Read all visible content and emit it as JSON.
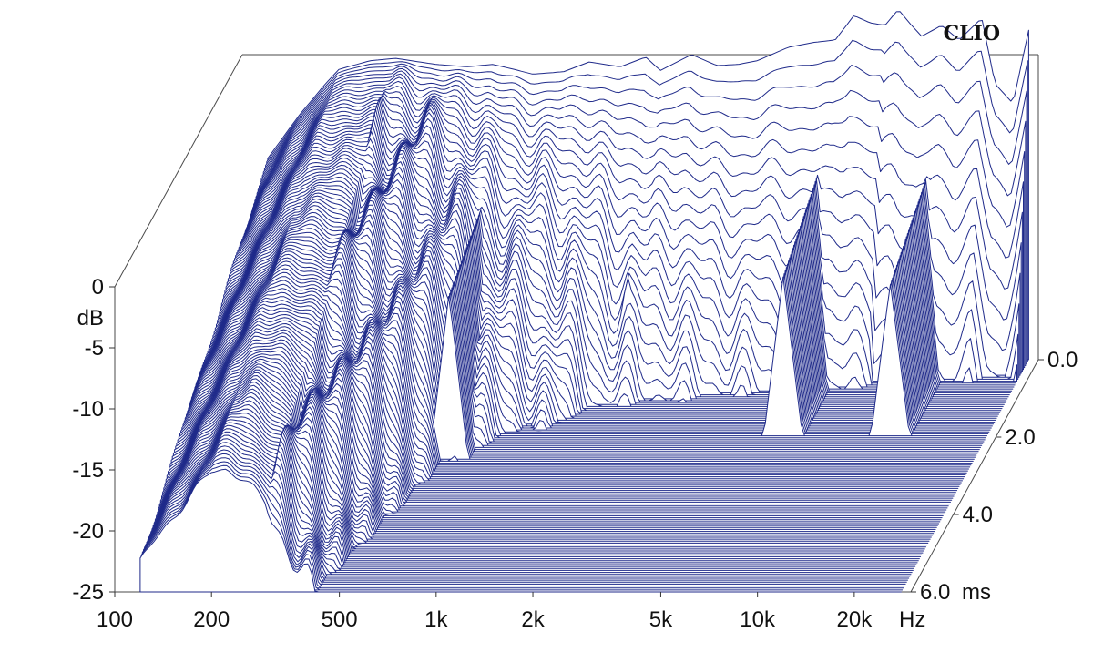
{
  "chart_data": {
    "type": "waterfall-3d",
    "brand": "CLIO",
    "x_axis": {
      "scale": "log",
      "unit": "Hz",
      "range": [
        100,
        30000
      ],
      "ticks": [
        {
          "value": 100,
          "label": "100"
        },
        {
          "value": 200,
          "label": "200"
        },
        {
          "value": 500,
          "label": "500"
        },
        {
          "value": 1000,
          "label": "1k"
        },
        {
          "value": 2000,
          "label": "2k"
        },
        {
          "value": 5000,
          "label": "5k"
        },
        {
          "value": 10000,
          "label": "10k"
        },
        {
          "value": 20000,
          "label": "20k"
        }
      ]
    },
    "y_axis": {
      "unit": "dB",
      "range": [
        -25,
        0
      ],
      "ticks": [
        {
          "value": 0,
          "label": "0"
        },
        {
          "value": -5,
          "label": "-5"
        },
        {
          "value": -10,
          "label": "-10"
        },
        {
          "value": -15,
          "label": "-15"
        },
        {
          "value": -20,
          "label": "-20"
        },
        {
          "value": -25,
          "label": "-25"
        }
      ]
    },
    "z_axis": {
      "unit": "ms",
      "range": [
        0,
        6
      ],
      "ticks": [
        {
          "value": 0,
          "label": "0.0"
        },
        {
          "value": 2,
          "label": "2.0"
        },
        {
          "value": 4,
          "label": "4.0"
        },
        {
          "value": 6,
          "label": "6.0"
        }
      ]
    },
    "slice_count": 120,
    "series_color": "#1f2a8a",
    "initial_response": {
      "freq_hz": [
        120,
        150,
        180,
        200,
        250,
        300,
        400,
        500,
        600,
        700,
        800,
        1000,
        1200,
        1500,
        1800,
        2000,
        2500,
        3000,
        3500,
        4000,
        5000,
        6000,
        7000,
        8000,
        9000,
        10000,
        11000,
        12000,
        13000,
        15000,
        17000,
        20000,
        22000,
        25000,
        28000
      ],
      "db": [
        -8.5,
        -5,
        -2.5,
        -1.2,
        -0.5,
        -0.3,
        -0.8,
        -1.0,
        -0.8,
        -1.2,
        -1.6,
        -1.4,
        -0.6,
        -1.0,
        -0.2,
        -1.3,
        0.0,
        -0.9,
        -0.8,
        -0.5,
        0.6,
        1.0,
        1.2,
        3.2,
        2.6,
        2.4,
        3.7,
        2.5,
        1.5,
        2.4,
        1.2,
        3.0,
        -2.4,
        -4.0,
        2.0
      ]
    },
    "decay_features": [
      {
        "freq_hz": 650,
        "lasts_ms": 2.6,
        "level_db": -7.5
      },
      {
        "freq_hz": 1800,
        "lasts_ms": 0.9,
        "level_db": -11.5
      },
      {
        "freq_hz": 6500,
        "lasts_ms": 2.0,
        "level_db": -8
      },
      {
        "freq_hz": 14000,
        "lasts_ms": 2.0,
        "level_db": -8.5
      }
    ]
  }
}
